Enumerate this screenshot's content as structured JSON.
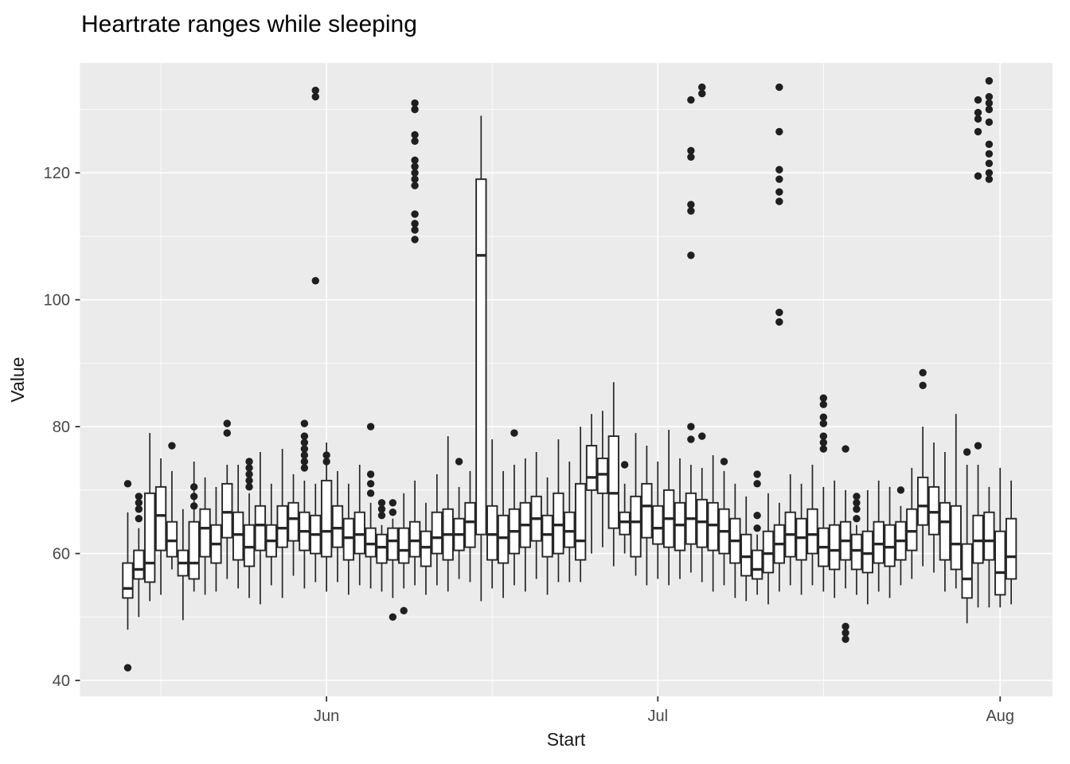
{
  "title": "Heartrate ranges while sleeping",
  "x_axis": {
    "label": "Start",
    "major_ticks": [
      "Jun",
      "Jul",
      "Aug"
    ]
  },
  "y_axis": {
    "label": "Value",
    "ticks": [
      40,
      60,
      80,
      100,
      120
    ]
  },
  "colors": {
    "panel_bg": "#EBEBEB",
    "grid": "#FFFFFF",
    "box_stroke": "#262626",
    "box_fill": "#FFFFFF",
    "outlier": "#1F1F1F",
    "tick_mark": "#333333",
    "tick_text": "#474747",
    "title_text": "#000000"
  },
  "chart_data": {
    "type": "boxplot",
    "title": "Heartrate ranges while sleeping",
    "xlabel": "Start",
    "ylabel": "Value",
    "x_tick_labels": [
      "Jun",
      "Jul",
      "Aug"
    ],
    "x_major_tick_days": [
      "Jun 1",
      "Jul 1",
      "Aug 1"
    ],
    "x_minor_gridline_days": [
      "May 17",
      "Jun 16",
      "Jul 16"
    ],
    "y_major_gridlines": [
      40,
      60,
      80,
      100,
      120
    ],
    "y_minor_gridlines": [
      50,
      70,
      90,
      110,
      130
    ],
    "ylim": [
      37,
      138
    ],
    "legend": "none",
    "grid": "on",
    "columns": [
      "date",
      "whisker_low",
      "q1",
      "median",
      "q3",
      "whisker_high",
      "outliers"
    ],
    "days": [
      [
        "May 14",
        48,
        53,
        54.5,
        58.5,
        66.5,
        [
          42,
          71
        ]
      ],
      [
        "May 15",
        50,
        56,
        57.5,
        60.5,
        64,
        [
          65.5,
          67,
          68,
          69
        ]
      ],
      [
        "May 16",
        52.5,
        55.5,
        58.5,
        69.5,
        79,
        []
      ],
      [
        "May 17",
        53.5,
        60.5,
        66,
        70.5,
        75,
        []
      ],
      [
        "May 18",
        57.5,
        59.5,
        62,
        65,
        73,
        [
          77
        ]
      ],
      [
        "May 19",
        49.5,
        56.5,
        58.5,
        60.5,
        67,
        []
      ],
      [
        "May 20",
        54,
        56,
        58.5,
        65,
        74.5,
        [
          67.5,
          69,
          70.5
        ]
      ],
      [
        "May 21",
        53.5,
        59.5,
        64,
        67,
        72,
        []
      ],
      [
        "May 22",
        54,
        58.5,
        61.5,
        64.5,
        70.5,
        []
      ],
      [
        "May 23",
        56,
        62.5,
        66.5,
        71,
        74,
        [
          79,
          80.5
        ]
      ],
      [
        "May 24",
        54.5,
        59,
        63,
        66.5,
        74,
        []
      ],
      [
        "May 25",
        53,
        58,
        61,
        64.5,
        69.5,
        [
          70.5,
          71.5,
          72.5,
          73.5,
          74.5
        ]
      ],
      [
        "May 26",
        52,
        60.5,
        64.5,
        67.5,
        76,
        []
      ],
      [
        "May 27",
        55,
        59.5,
        62,
        64.5,
        71,
        []
      ],
      [
        "May 28",
        53,
        61,
        64,
        67.5,
        76.5,
        []
      ],
      [
        "May 29",
        56.5,
        62,
        65.5,
        68,
        72.5,
        []
      ],
      [
        "May 30",
        54.5,
        60.5,
        63.5,
        66.5,
        71.5,
        [
          73.5,
          74.5,
          75.5,
          76.5,
          77.5,
          78.5,
          80.5
        ]
      ],
      [
        "May 31",
        55.5,
        60,
        63,
        66,
        71,
        [
          103,
          132,
          133
        ]
      ],
      [
        "Jun 1",
        54,
        59.5,
        63.5,
        71.5,
        77.5,
        [
          74.5,
          75.5
        ]
      ],
      [
        "Jun 2",
        55.5,
        61,
        64,
        67.5,
        73,
        []
      ],
      [
        "Jun 3",
        53.5,
        59,
        62.5,
        65.5,
        71,
        []
      ],
      [
        "Jun 4",
        55,
        60,
        63,
        66.5,
        74,
        []
      ],
      [
        "Jun 5",
        54.5,
        59.5,
        61.5,
        64,
        68,
        [
          69.5,
          71,
          72.5,
          80
        ]
      ],
      [
        "Jun 6",
        54,
        58.5,
        61,
        63,
        64.5,
        [
          66,
          67,
          68
        ]
      ],
      [
        "Jun 7",
        53,
        59,
        62,
        64,
        65.5,
        [
          50,
          66.5,
          68
        ]
      ],
      [
        "Jun 8",
        54.5,
        58.5,
        60.5,
        64,
        69.5,
        [
          51
        ]
      ],
      [
        "Jun 9",
        55,
        59.5,
        62,
        65,
        71.5,
        [
          109.5,
          111,
          112,
          113.5,
          118,
          119,
          120,
          121,
          122,
          125,
          126,
          130,
          131
        ]
      ],
      [
        "Jun 10",
        53.5,
        58,
        61,
        63.5,
        68,
        []
      ],
      [
        "Jun 11",
        55,
        60,
        62.5,
        66.5,
        72.5,
        []
      ],
      [
        "Jun 12",
        54,
        59,
        63,
        67,
        78.5,
        []
      ],
      [
        "Jun 13",
        56,
        60.5,
        63,
        65.5,
        70.5,
        [
          74.5
        ]
      ],
      [
        "Jun 14",
        55.5,
        61,
        65,
        68,
        73,
        []
      ],
      [
        "Jun 15",
        52.5,
        63,
        107,
        119,
        129,
        []
      ],
      [
        "Jun 16",
        54.5,
        59,
        63,
        67.5,
        78,
        []
      ],
      [
        "Jun 17",
        53,
        58.5,
        62.5,
        66,
        73,
        []
      ],
      [
        "Jun 18",
        55,
        60,
        63.5,
        67,
        74,
        [
          79
        ]
      ],
      [
        "Jun 19",
        54,
        61,
        64.5,
        68,
        75,
        []
      ],
      [
        "Jun 20",
        56,
        62,
        65.5,
        69,
        76,
        []
      ],
      [
        "Jun 21",
        53.5,
        59.5,
        63,
        66,
        72,
        []
      ],
      [
        "Jun 22",
        55.5,
        60,
        64.5,
        69.5,
        78,
        []
      ],
      [
        "Jun 23",
        55.5,
        61,
        63.5,
        66.5,
        74.5,
        []
      ],
      [
        "Jun 24",
        55.5,
        59,
        62,
        71,
        80,
        []
      ],
      [
        "Jun 25",
        60,
        70,
        72,
        77,
        82,
        []
      ],
      [
        "Jun 26",
        61,
        69.5,
        72.5,
        75,
        82.5,
        []
      ],
      [
        "Jun 27",
        58,
        64,
        69.5,
        78.5,
        87,
        []
      ],
      [
        "Jun 28",
        60,
        63,
        65,
        66.5,
        71,
        [
          74
        ]
      ],
      [
        "Jun 29",
        56.5,
        59.5,
        65,
        69,
        79,
        []
      ],
      [
        "Jun 30",
        55,
        62.5,
        67.5,
        71,
        77,
        []
      ],
      [
        "Jul 1",
        56,
        61.5,
        64,
        67.5,
        74.5,
        []
      ],
      [
        "Jul 2",
        55,
        61,
        65.5,
        70,
        79.5,
        []
      ],
      [
        "Jul 3",
        56,
        60.5,
        64.5,
        68,
        75,
        []
      ],
      [
        "Jul 4",
        57,
        61.5,
        65.5,
        69.5,
        74,
        [
          78,
          80,
          107,
          114,
          115,
          122.5,
          123.5,
          131.5
        ]
      ],
      [
        "Jul 5",
        55.5,
        61,
        65,
        68.5,
        73.5,
        [
          78.5,
          132.5,
          133.5
        ]
      ],
      [
        "Jul 6",
        54,
        60.5,
        64.5,
        68,
        75.5,
        []
      ],
      [
        "Jul 7",
        55,
        60,
        63.5,
        67,
        73,
        [
          74.5
        ]
      ],
      [
        "Jul 8",
        53,
        58.5,
        62,
        65.5,
        71,
        []
      ],
      [
        "Jul 9",
        52.5,
        56.5,
        59.5,
        63,
        69,
        []
      ],
      [
        "Jul 10",
        53.5,
        56,
        57.5,
        60.5,
        63,
        [
          64,
          66,
          71,
          72.5
        ]
      ],
      [
        "Jul 11",
        52,
        57,
        60,
        63.5,
        69.5,
        []
      ],
      [
        "Jul 12",
        54,
        58.5,
        61.5,
        64.5,
        68,
        [
          96.5,
          98,
          115.5,
          117,
          119,
          120.5,
          126.5,
          133.5
        ]
      ],
      [
        "Jul 13",
        55,
        59.5,
        63,
        66.5,
        72.5,
        []
      ],
      [
        "Jul 14",
        53.5,
        59,
        62.5,
        65.5,
        71,
        []
      ],
      [
        "Jul 15",
        55,
        60,
        63,
        67,
        74,
        []
      ],
      [
        "Jul 16",
        54,
        58,
        61,
        64,
        70.5,
        [
          76.5,
          77.5,
          78.5,
          80.5,
          81.5,
          83.5,
          84.5
        ]
      ],
      [
        "Jul 17",
        53,
        57.5,
        60.5,
        64.5,
        71.5,
        []
      ],
      [
        "Jul 18",
        54.5,
        59,
        62,
        65,
        70,
        [
          46.5,
          47.5,
          48.5,
          76.5
        ]
      ],
      [
        "Jul 19",
        53.5,
        57.5,
        60.5,
        63,
        64.5,
        [
          65.5,
          67,
          68,
          69
        ]
      ],
      [
        "Jul 20",
        52,
        57,
        60,
        63.5,
        70,
        []
      ],
      [
        "Jul 21",
        54,
        58.5,
        61.5,
        65,
        71.5,
        []
      ],
      [
        "Jul 22",
        53,
        58,
        61,
        64.5,
        70.5,
        []
      ],
      [
        "Jul 23",
        55,
        59,
        62,
        65,
        67.5,
        [
          70
        ]
      ],
      [
        "Jul 24",
        56,
        60.5,
        63.5,
        67,
        73.5,
        []
      ],
      [
        "Jul 25",
        58,
        64.5,
        67.5,
        72,
        80,
        [
          86.5,
          88.5
        ]
      ],
      [
        "Jul 26",
        57,
        63,
        66.5,
        70.5,
        77.5,
        []
      ],
      [
        "Jul 27",
        54,
        59,
        65,
        68,
        76,
        []
      ],
      [
        "Jul 28",
        54.5,
        57.5,
        61.5,
        67.5,
        82,
        []
      ],
      [
        "Jul 29",
        49,
        53,
        56,
        61.5,
        74,
        [
          76
        ]
      ],
      [
        "Jul 30",
        51.5,
        58.5,
        62,
        66,
        74,
        [
          77,
          119.5,
          126.5,
          128.5,
          129.5,
          131.5
        ]
      ],
      [
        "Jul 31",
        51.5,
        59,
        62,
        66.5,
        70.5,
        [
          119,
          120,
          121.5,
          123,
          124.5,
          128,
          130,
          131,
          132,
          134.5
        ]
      ],
      [
        "Aug 1",
        51.5,
        53.5,
        57,
        63.5,
        73.5,
        []
      ],
      [
        "Aug 2",
        52,
        56,
        59.5,
        65.5,
        71.5,
        []
      ]
    ]
  }
}
